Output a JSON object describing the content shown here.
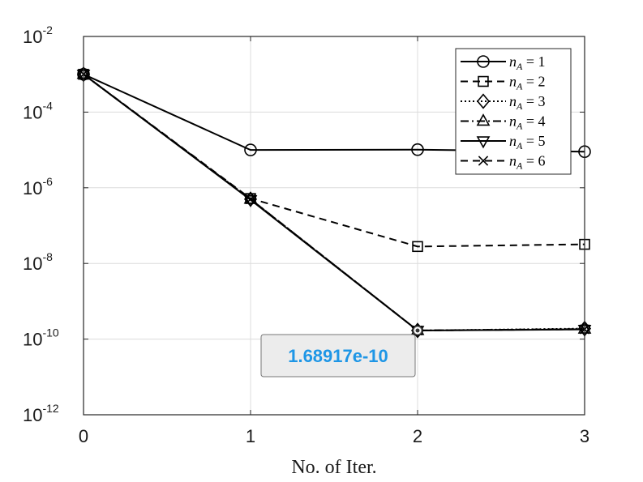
{
  "chart_data": {
    "type": "line",
    "xlabel": "No. of Iter.",
    "ylabel": "",
    "x": [
      0,
      1,
      2,
      3
    ],
    "xlim": [
      0,
      3
    ],
    "ylim": [
      1e-12,
      0.01
    ],
    "yscale": "log",
    "grid": true,
    "x_ticks": [
      "0",
      "1",
      "2",
      "3"
    ],
    "y_ticks": [
      {
        "value": 0.01,
        "base": "10",
        "exp": "-2"
      },
      {
        "value": 0.0001,
        "base": "10",
        "exp": "-4"
      },
      {
        "value": 1e-06,
        "base": "10",
        "exp": "-6"
      },
      {
        "value": 1e-08,
        "base": "10",
        "exp": "-8"
      },
      {
        "value": 1e-10,
        "base": "10",
        "exp": "-10"
      },
      {
        "value": 1e-12,
        "base": "10",
        "exp": "-12"
      }
    ],
    "legend_placement": "top-right",
    "series": [
      {
        "name": "n_A = 1",
        "var": "n",
        "sub": "A",
        "eq": " = 1",
        "values": [
          0.001,
          1e-05,
          1.02e-05,
          9e-06
        ],
        "marker": "circle",
        "dash": "solid"
      },
      {
        "name": "n_A = 2",
        "var": "n",
        "sub": "A",
        "eq": " = 2",
        "values": [
          0.001,
          5.2e-07,
          2.8e-08,
          3.2e-08
        ],
        "marker": "square",
        "dash": "dashed"
      },
      {
        "name": "n_A = 3",
        "var": "n",
        "sub": "A",
        "eq": " = 3",
        "values": [
          0.001,
          5e-07,
          1.69e-10,
          1.9e-10
        ],
        "marker": "diamond",
        "dash": "dotted"
      },
      {
        "name": "n_A = 4",
        "var": "n",
        "sub": "A",
        "eq": " = 4",
        "values": [
          0.001,
          5e-07,
          1.69e-10,
          1.85e-10
        ],
        "marker": "triangle-up",
        "dash": "dashdot"
      },
      {
        "name": "n_A = 5",
        "var": "n",
        "sub": "A",
        "eq": " = 5",
        "values": [
          0.001,
          4.8e-07,
          1.69e-10,
          1.8e-10
        ],
        "marker": "triangle-down",
        "dash": "solid"
      },
      {
        "name": "n_A = 6",
        "var": "n",
        "sub": "A",
        "eq": " = 6",
        "values": [
          0.001,
          5e-07,
          1.69e-10,
          1.82e-10
        ],
        "marker": "x",
        "dash": "dashed"
      }
    ],
    "datatip": {
      "text": "1.68917e-10",
      "x": 2,
      "y": 1.68917e-10
    }
  }
}
